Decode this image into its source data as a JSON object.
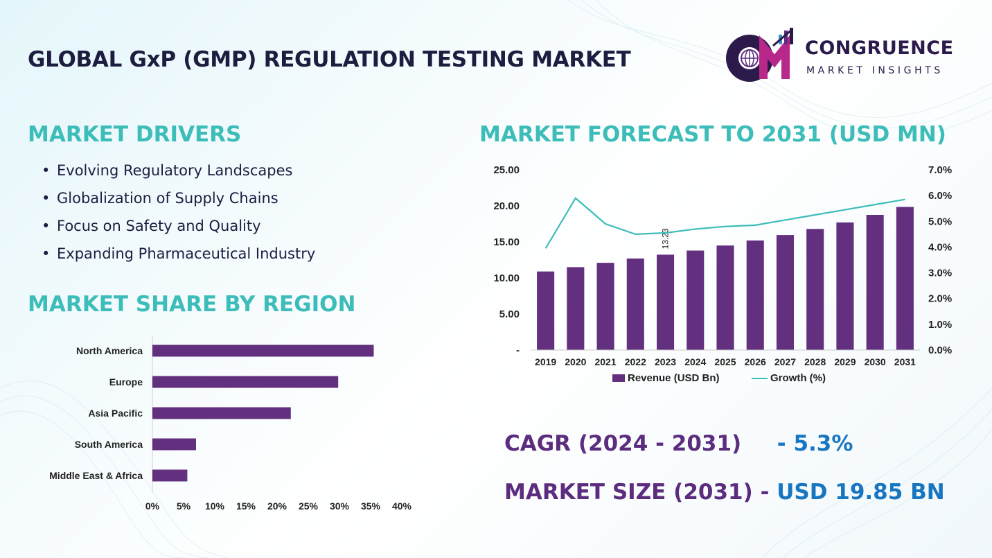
{
  "title": "GLOBAL GxP (GMP) REGULATION TESTING MARKET",
  "logo": {
    "word1": "CONGRUENCE",
    "word2": "MARKET INSIGHTS"
  },
  "colors": {
    "title": "#1c1d3f",
    "teal": "#3dbdb9",
    "purple": "#62307e",
    "blue": "#1876c0"
  },
  "drivers": {
    "heading": "MARKET DRIVERS",
    "items": [
      "Evolving Regulatory Landscapes",
      "Globalization of Supply Chains",
      "Focus on Safety and Quality",
      "Expanding Pharmaceutical Industry"
    ]
  },
  "region": {
    "heading": "MARKET SHARE BY REGION"
  },
  "forecast": {
    "heading": "MARKET FORECAST TO 2031 (USD MN)"
  },
  "kpis": {
    "cagr_label": "CAGR (2024 - 2031)",
    "cagr_value": "- 5.3%",
    "size_label": "MARKET SIZE (2031) -",
    "size_value": "USD 19.85 BN"
  },
  "chart_data": [
    {
      "type": "bar",
      "orientation": "horizontal",
      "categories": [
        "North America",
        "Europe",
        "Asia Pacific",
        "South America",
        "Middle East & Africa"
      ],
      "values": [
        35.5,
        29.8,
        22.2,
        7.0,
        5.6
      ],
      "xlim": [
        0,
        40
      ],
      "xticks": [
        "0%",
        "5%",
        "10%",
        "15%",
        "20%",
        "25%",
        "30%",
        "35%",
        "40%"
      ],
      "grid": false,
      "color": "#62307e"
    },
    {
      "type": "bar+line",
      "categories": [
        "2019",
        "2020",
        "2021",
        "2022",
        "2023",
        "2024",
        "2025",
        "2026",
        "2027",
        "2028",
        "2029",
        "2030",
        "2031"
      ],
      "series": [
        {
          "name": "Revenue (USD Bn)",
          "type": "bar",
          "axis": "left",
          "color": "#62307e",
          "values": [
            10.9,
            11.5,
            12.1,
            12.7,
            13.23,
            13.8,
            14.5,
            15.2,
            15.95,
            16.8,
            17.7,
            18.75,
            19.85
          ]
        },
        {
          "name": "Growth (%)",
          "type": "line",
          "axis": "right",
          "color": "#3dbdb9",
          "values": [
            3.95,
            5.9,
            4.9,
            4.5,
            4.55,
            4.7,
            4.8,
            4.85,
            5.05,
            5.25,
            5.45,
            5.65,
            5.85
          ]
        }
      ],
      "data_labels": [
        {
          "index": 4,
          "text": "13.23"
        }
      ],
      "ylim_left": [
        0,
        25
      ],
      "yticks_left": [
        "-",
        "5.00",
        "10.00",
        "15.00",
        "20.00",
        "25.00"
      ],
      "ylim_right": [
        0,
        7
      ],
      "yticks_right": [
        "0.0%",
        "1.0%",
        "2.0%",
        "3.0%",
        "4.0%",
        "5.0%",
        "6.0%",
        "7.0%"
      ],
      "grid": false,
      "legend_position": "bottom"
    }
  ]
}
